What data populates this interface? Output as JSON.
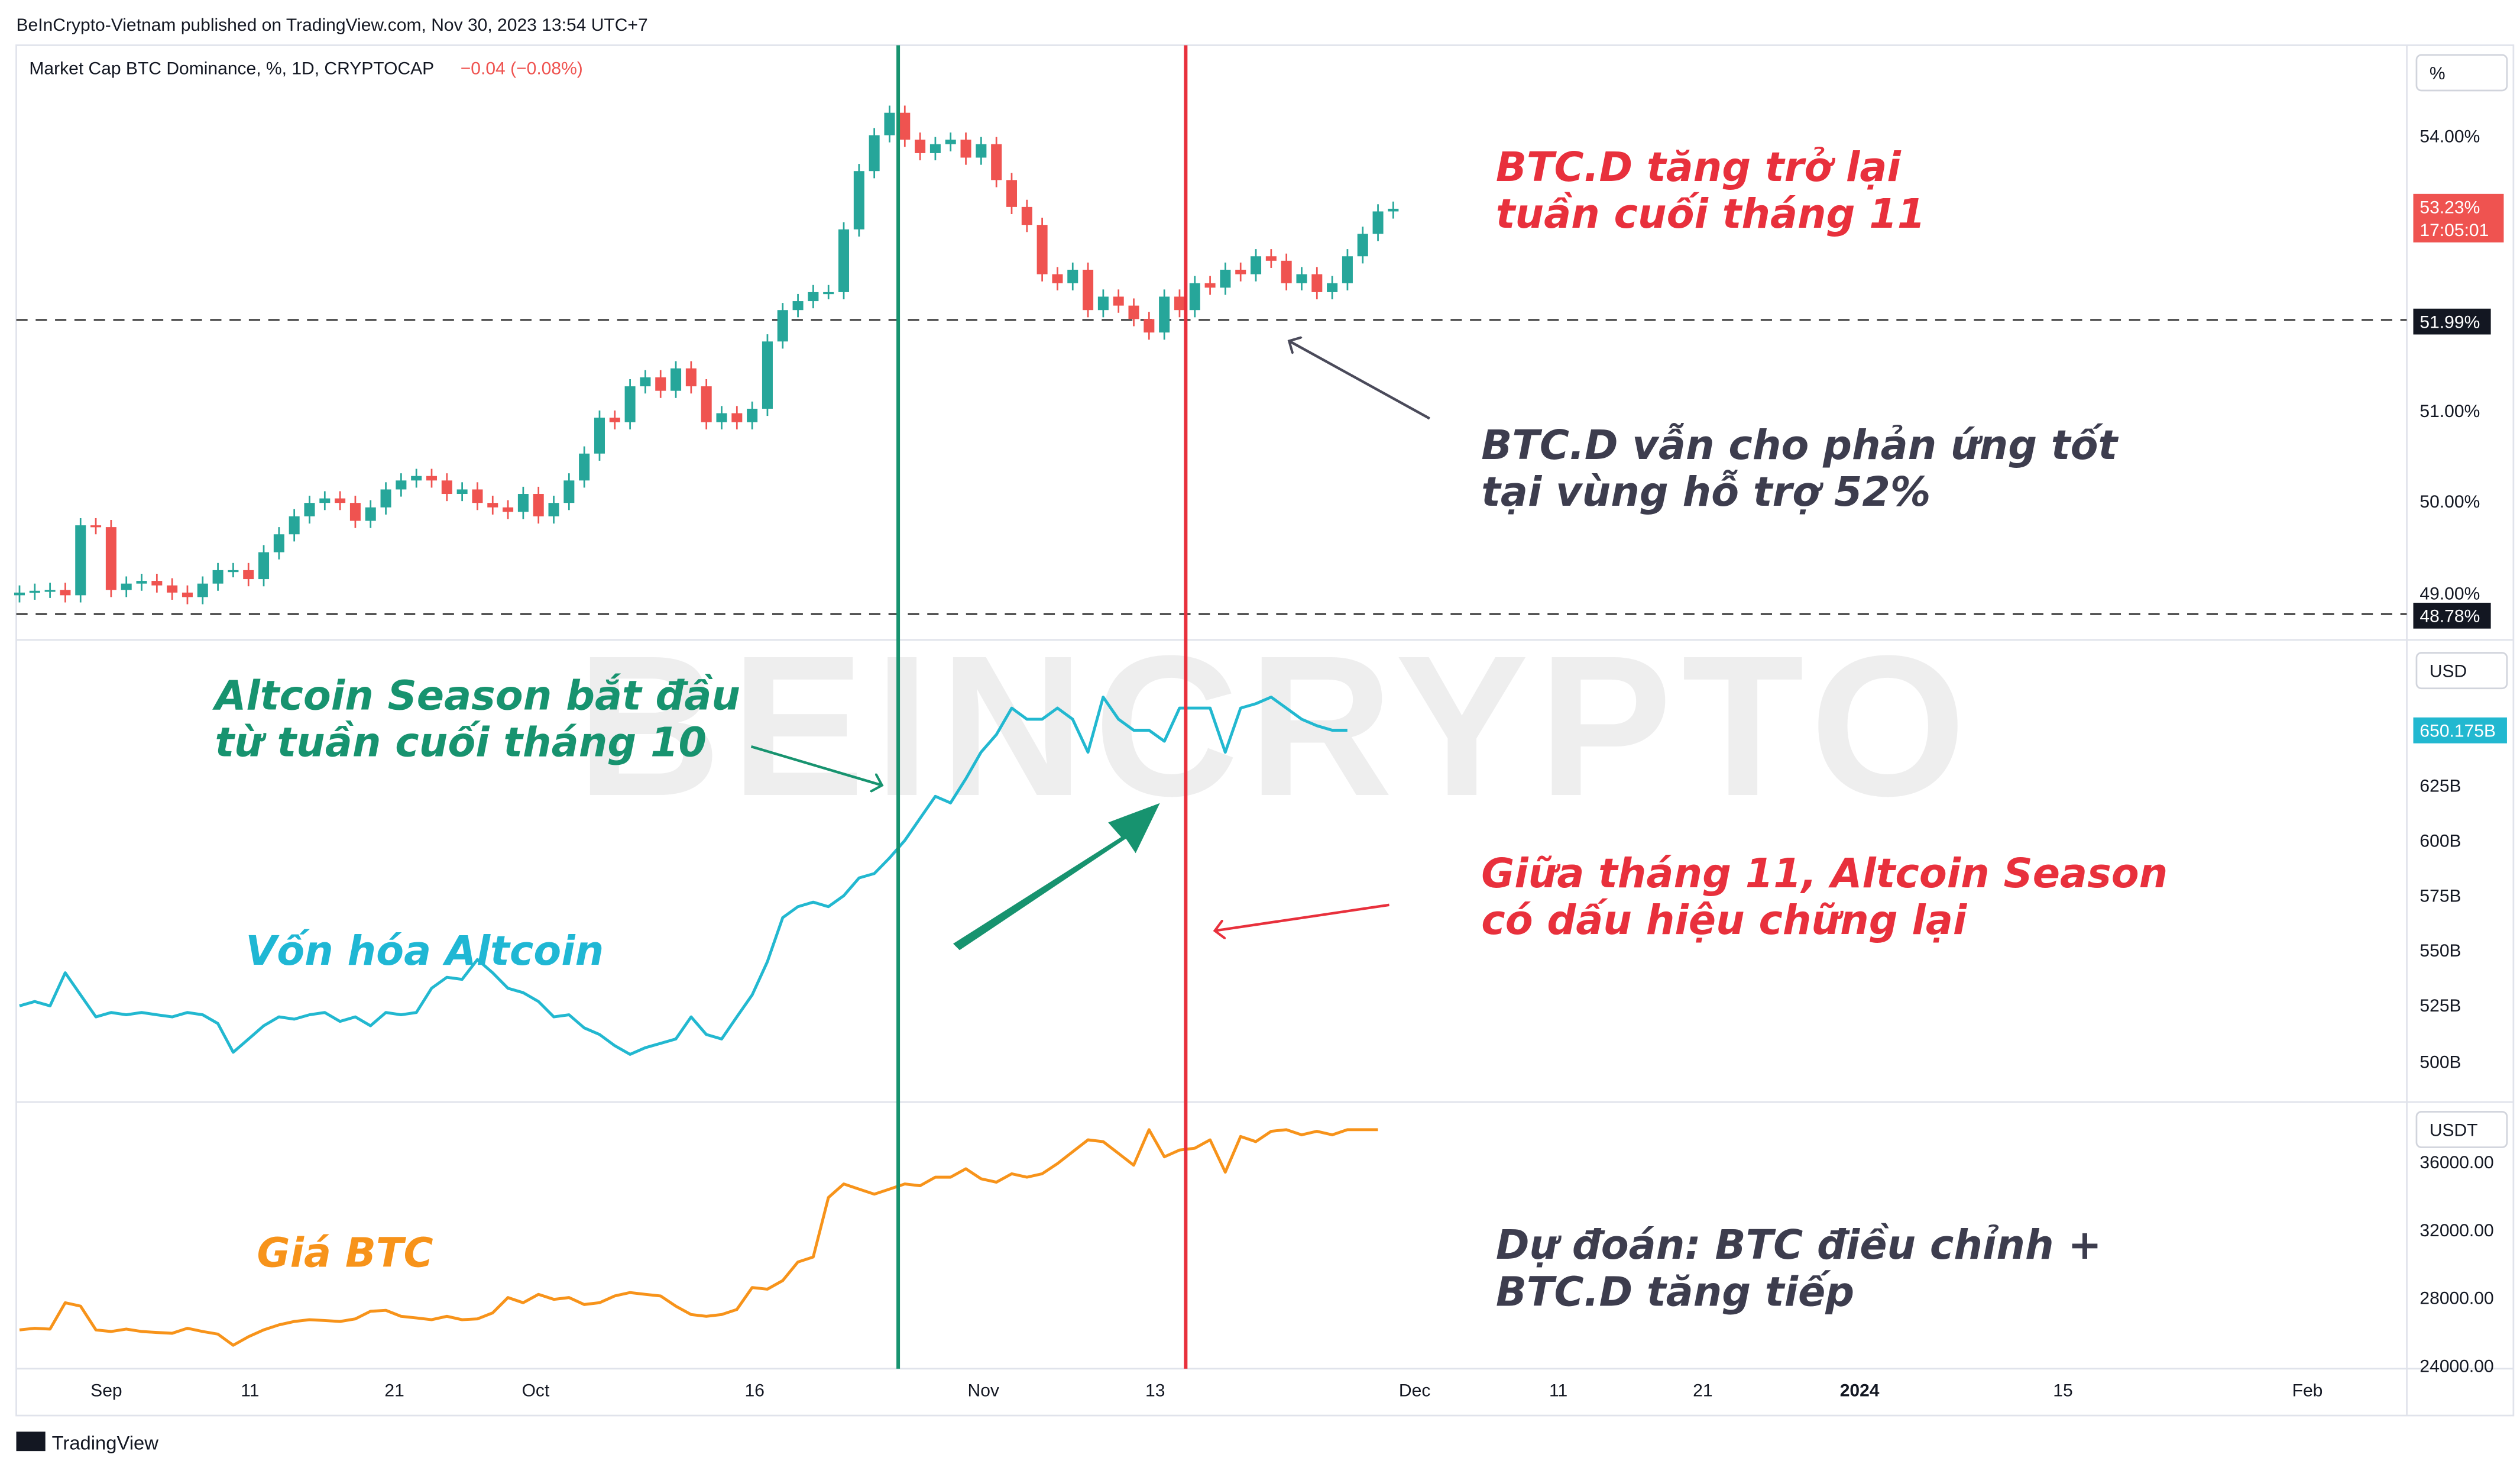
{
  "published_by": "BeInCrypto-Vietnam published on TradingView.com, Nov 30, 2023 13:54 UTC+7",
  "symbol_title": "Market Cap BTC Dominance, %, 1D, CRYPTOCAP",
  "symbol_change": "−0.04 (−0.08%)",
  "branding": "TradingView",
  "watermark": "BEINCRYPTO",
  "colors": {
    "up": "#26a69a",
    "down": "#ef5350",
    "altcoin_line": "#22b8d0",
    "btc_line": "#f7931a",
    "green_marker": "#17936f",
    "red_marker": "#e8303c",
    "annotation_red": "#e8303c",
    "annotation_teal": "#17936f",
    "annotation_cyan": "#1fb7d4",
    "annotation_orange": "#f7931a",
    "annotation_dark": "#3d3d4e"
  },
  "panes": {
    "btc_dominance": {
      "unit_label": "%",
      "ticks": [
        "54.00%",
        "51.00%",
        "50.00%",
        "49.00%"
      ],
      "last_price_tag": "53.23%",
      "countdown_tag": "17:05:01",
      "support_tag": "51.99%",
      "lower_tag": "48.78%"
    },
    "altcoin_cap": {
      "unit_label": "USD",
      "ticks": [
        "625B",
        "600B",
        "575B",
        "550B",
        "525B",
        "500B"
      ],
      "last_value_tag": "650.175B"
    },
    "btc_price": {
      "unit_label": "USDT",
      "ticks": [
        "36000.00",
        "32000.00",
        "28000.00",
        "24000.00"
      ]
    }
  },
  "time_axis": [
    "Sep",
    "11",
    "21",
    "Oct",
    "16",
    "Nov",
    "13",
    "Dec",
    "11",
    "21",
    "2024",
    "15",
    "Feb"
  ],
  "annotations": {
    "btcd_rise": [
      "BTC.D tăng trở lại",
      "tuần cuối tháng 11"
    ],
    "btcd_support": [
      "BTC.D vẫn cho phản ứng tốt",
      "tại vùng hỗ trợ 52%"
    ],
    "alt_season_start": [
      "Altcoin Season bắt đầu",
      "từ tuần cuối tháng 10"
    ],
    "alt_season_pause": [
      "Giữa tháng 11, Altcoin Season",
      "có dấu hiệu chững lại"
    ],
    "alt_cap_label": "Vốn hóa Altcoin",
    "btc_price_label": "Giá BTC",
    "forecast": [
      "Dự đoán: BTC điều chỉnh +",
      "BTC.D tăng tiếp"
    ]
  },
  "chart_data": [
    {
      "type": "candlestick",
      "title": "Market Cap BTC Dominance, %, 1D, CRYPTOCAP",
      "unit": "%",
      "x_axis": "daily, late Aug 2023 – Nov 30 2023",
      "ylim": [
        48.7,
        54.5
      ],
      "support_levels": [
        51.99,
        48.78
      ],
      "last_value": 53.23,
      "closes": [
        48.95,
        48.97,
        48.98,
        48.92,
        49.7,
        49.68,
        48.98,
        49.05,
        49.08,
        49.03,
        48.95,
        48.9,
        49.05,
        49.2,
        49.2,
        49.1,
        49.4,
        49.6,
        49.8,
        49.95,
        50.0,
        49.95,
        49.75,
        49.9,
        50.1,
        50.2,
        50.25,
        50.2,
        50.05,
        50.1,
        49.95,
        49.9,
        49.85,
        50.05,
        49.8,
        49.95,
        50.2,
        50.5,
        50.9,
        50.85,
        51.25,
        51.35,
        51.2,
        51.45,
        51.25,
        50.85,
        50.95,
        50.85,
        51.0,
        51.75,
        52.1,
        52.2,
        52.3,
        52.3,
        53.0,
        53.65,
        54.05,
        54.3,
        54.0,
        53.85,
        53.95,
        54.0,
        53.8,
        53.95,
        53.55,
        53.25,
        53.05,
        52.5,
        52.4,
        52.55,
        52.1,
        52.25,
        52.15,
        52.0,
        51.85,
        52.25,
        52.1,
        52.4,
        52.35,
        52.55,
        52.5,
        52.7,
        52.65,
        52.4,
        52.5,
        52.3,
        52.4,
        52.7,
        52.95,
        53.2,
        53.23
      ]
    },
    {
      "type": "line",
      "series": [
        {
          "name": "Vốn hóa Altcoin",
          "unit": "USD"
        }
      ],
      "ylim": [
        490,
        700
      ],
      "last_value": 650.175,
      "values": [
        525,
        527,
        525,
        540,
        530,
        520,
        522,
        521,
        522,
        521,
        520,
        522,
        521,
        517,
        504,
        510,
        516,
        520,
        519,
        521,
        522,
        518,
        520,
        516,
        522,
        521,
        522,
        533,
        538,
        537,
        546,
        540,
        533,
        531,
        527,
        520,
        521,
        515,
        512,
        507,
        503,
        506,
        508,
        510,
        520,
        512,
        510,
        520,
        530,
        545,
        565,
        570,
        572,
        570,
        575,
        583,
        585,
        592,
        600,
        610,
        620,
        617,
        628,
        640,
        648,
        660,
        655,
        655,
        660,
        655,
        640,
        665,
        655,
        650,
        650,
        645,
        660,
        660,
        660,
        640,
        660,
        662,
        665,
        660,
        655,
        652,
        650,
        650
      ]
    },
    {
      "type": "line",
      "series": [
        {
          "name": "Giá BTC",
          "unit": "USDT"
        }
      ],
      "ylim": [
        24000,
        38500
      ],
      "values": [
        26000,
        26100,
        26050,
        27600,
        27400,
        26000,
        25900,
        26050,
        25900,
        25850,
        25800,
        26100,
        25900,
        25750,
        25100,
        25600,
        26000,
        26300,
        26500,
        26600,
        26550,
        26500,
        26650,
        27100,
        27150,
        26800,
        26700,
        26600,
        26800,
        26600,
        26650,
        27000,
        27900,
        27600,
        28100,
        27800,
        27900,
        27500,
        27600,
        28000,
        28200,
        28100,
        28000,
        27400,
        26900,
        26800,
        26900,
        27200,
        28500,
        28400,
        28900,
        30000,
        30300,
        33800,
        34600,
        34300,
        34000,
        34300,
        34600,
        34500,
        35000,
        35000,
        35500,
        34900,
        34700,
        35200,
        35000,
        35200,
        35800,
        36500,
        37200,
        37100,
        36400,
        35700,
        37800,
        36200,
        36600,
        36700,
        37200,
        35300,
        37400,
        37100,
        37700,
        37800,
        37500,
        37700,
        37500,
        37800,
        37800,
        37800
      ]
    }
  ]
}
